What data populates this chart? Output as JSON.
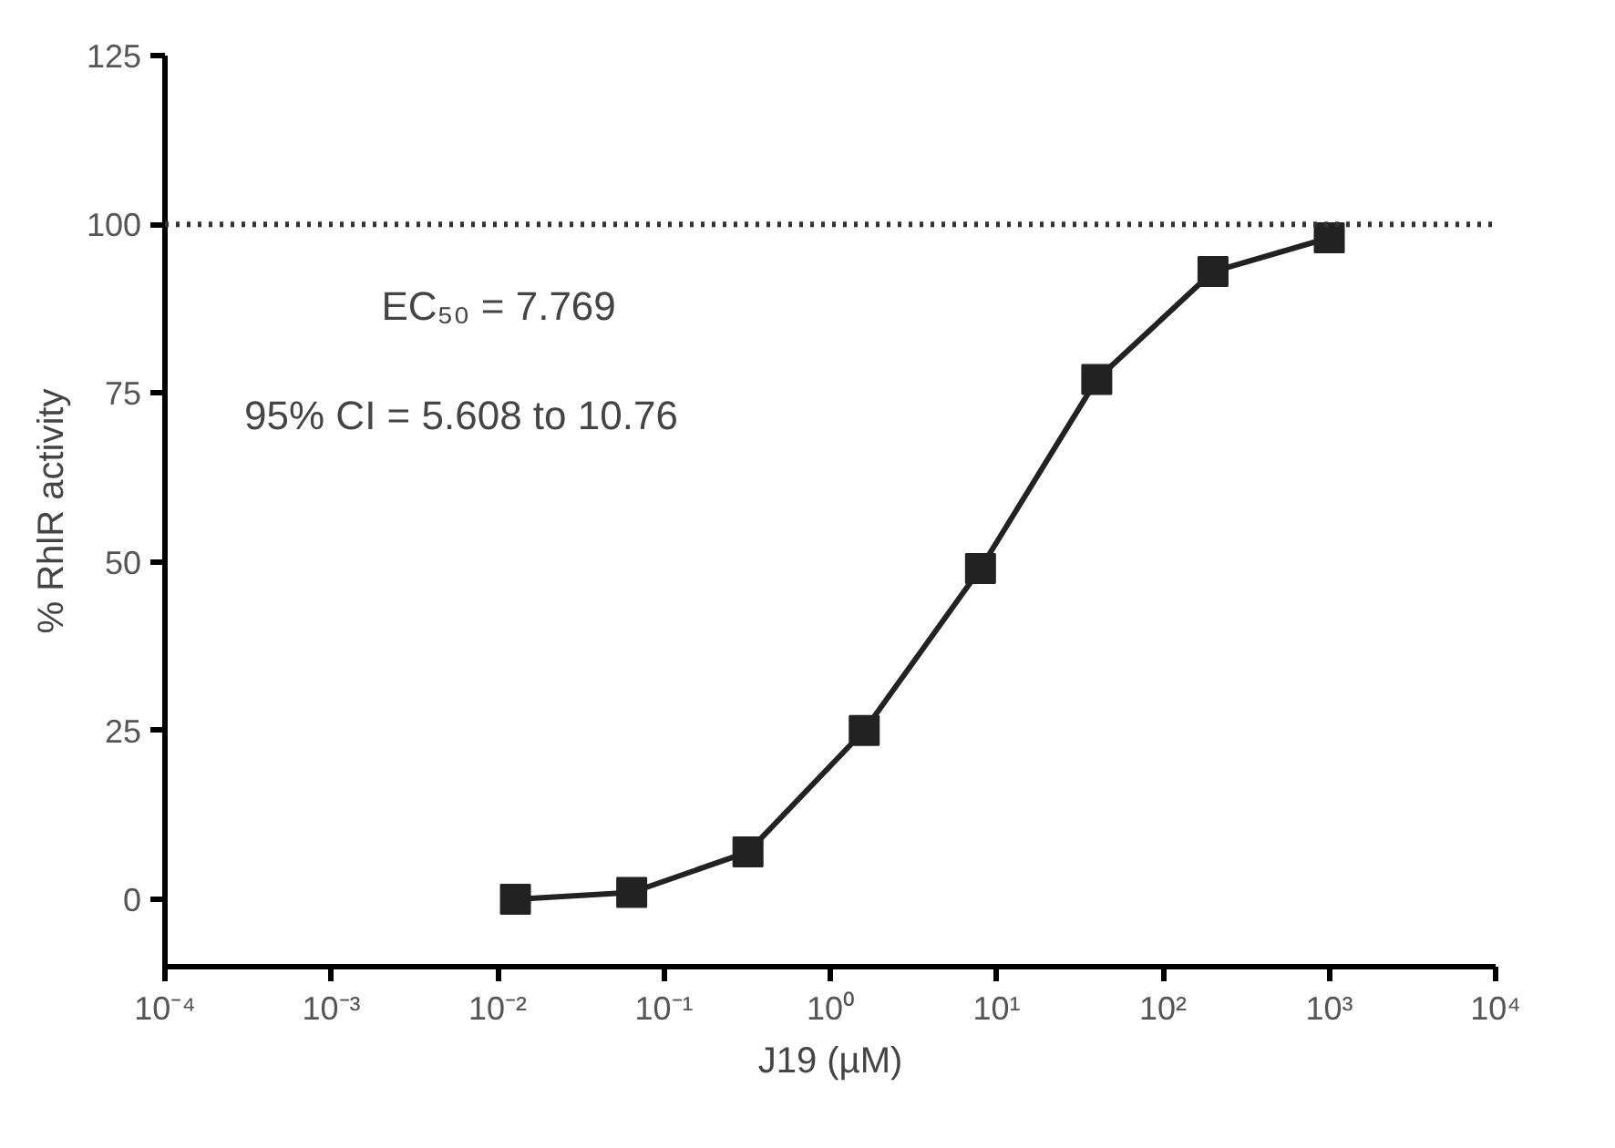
{
  "chart_data": {
    "type": "line",
    "x": [
      0.0128,
      0.064,
      0.32,
      1.6,
      8,
      40,
      200,
      1000
    ],
    "series": [
      {
        "color": "#222222",
        "values": [
          0,
          1,
          7,
          25,
          49,
          77,
          93,
          98
        ]
      }
    ],
    "log": "x",
    "marker": "square",
    "line_style": "solid",
    "grid": false,
    "xlim": [
      0.0001,
      10000
    ],
    "xticks": [
      {
        "value": 0.0001,
        "label": "10⁻⁴"
      },
      {
        "value": 0.001,
        "label": "10⁻³"
      },
      {
        "value": 0.01,
        "label": "10⁻²"
      },
      {
        "value": 0.1,
        "label": "10⁻¹"
      },
      {
        "value": 1,
        "label": "10⁰"
      },
      {
        "value": 10,
        "label": "10¹"
      },
      {
        "value": 100,
        "label": "10²"
      },
      {
        "value": 1000,
        "label": "10³"
      },
      {
        "value": 10000,
        "label": "10⁴"
      }
    ],
    "ylim": [
      -10,
      125
    ],
    "yticks": [
      0,
      25,
      50,
      75,
      100,
      125
    ],
    "ylabel": "% RhlR activity",
    "xlabel": "J19 (µM)",
    "ref_lines": [
      {
        "axis": "y",
        "value": 100,
        "label": null,
        "line_style": "dotted"
      }
    ],
    "annotations": [
      "EC₅₀ = 7.769",
      "95% CI = 5.608 to 10.76"
    ]
  }
}
